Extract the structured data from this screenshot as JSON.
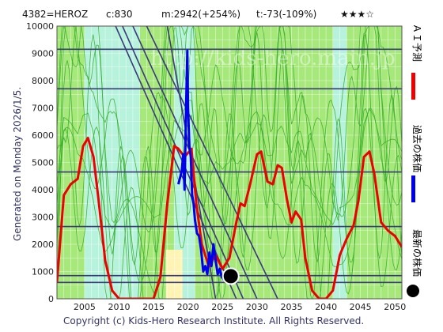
{
  "header": {
    "code": "4382=HEROZ",
    "current": "c:830",
    "mean": "m:2942(+254%)",
    "trend": "t:-73(-109%)",
    "stars": "★★★☆"
  },
  "side_text": "Generated on Monday 2026/1/5.",
  "copyright": "Copyright (c) Kids-Hero Research Institute. All Rights Reserved.",
  "watermark": "http://kids-hero.main.jp",
  "legend": [
    {
      "label": "ＡＩ予測",
      "color": "#ee0000"
    },
    {
      "label": "過去の株価",
      "color": "#0000ee"
    },
    {
      "label": "最新の株価",
      "color": "#000000"
    }
  ],
  "colors": {
    "plot_bg": "#ffffff",
    "zone_green": "#a6e87a",
    "zone_cyan": "#b6f2dc",
    "zone_yellow": "#fff4b3",
    "grid": "#ffffff",
    "hline": "#3a3a7a",
    "trend": "#3a3a7a",
    "forecast": "#ee0000",
    "price": "#0000ee",
    "thin_green": "#33aa22",
    "latest": "#000000"
  },
  "chart_data": {
    "type": "line",
    "xlim": [
      2001,
      2051
    ],
    "ylim": [
      0,
      10000
    ],
    "x_ticks": [
      2005,
      2010,
      2015,
      2020,
      2025,
      2030,
      2035,
      2040,
      2045,
      2050
    ],
    "y_ticks": [
      0,
      1000,
      2000,
      3000,
      4000,
      5000,
      6000,
      7000,
      8000,
      9000,
      10000
    ],
    "grid": true,
    "zones": [
      {
        "kind": "green",
        "x": [
          2001,
          2051
        ]
      },
      {
        "kind": "cyan",
        "x": [
          2005,
          2013
        ]
      },
      {
        "kind": "cyan",
        "x": [
          2018,
          2021
        ]
      },
      {
        "kind": "yellow",
        "x": [
          2016.8,
          2019.2
        ],
        "y": [
          0,
          1800
        ]
      },
      {
        "kind": "cyan",
        "x": [
          2041,
          2043
        ]
      }
    ],
    "horizontal_levels": [
      9150,
      7700,
      4650,
      2650,
      850,
      600
    ],
    "trend_lines": [
      {
        "x": [
          2009.5,
          2027
        ],
        "y": [
          10000,
          0
        ]
      },
      {
        "x": [
          2010.5,
          2028
        ],
        "y": [
          10000,
          0
        ]
      },
      {
        "x": [
          2012,
          2030
        ],
        "y": [
          10000,
          0
        ]
      },
      {
        "x": [
          2014,
          2033
        ],
        "y": [
          10000,
          0
        ]
      },
      {
        "x": [
          2017,
          2024
        ],
        "y": [
          10000,
          0
        ]
      }
    ],
    "series": [
      {
        "name": "ＡＩ予測",
        "x": [
          2001,
          2002,
          2003,
          2004,
          2004.8,
          2005.5,
          2006.3,
          2007,
          2008,
          2009,
          2010,
          2011,
          2012,
          2013,
          2014,
          2015,
          2016,
          2017,
          2018,
          2018.6,
          2019.5,
          2020.5,
          2021.2,
          2022,
          2023,
          2024,
          2025,
          2026,
          2027,
          2027.6,
          2028.2,
          2029,
          2030,
          2030.6,
          2031.5,
          2032.3,
          2033,
          2033.6,
          2034.3,
          2035,
          2035.6,
          2036.4,
          2037,
          2038,
          2039,
          2040,
          2041,
          2042,
          2043,
          2044,
          2044.7,
          2045.5,
          2046.3,
          2047,
          2048,
          2049,
          2050,
          2051
        ],
        "y": [
          600,
          3800,
          4200,
          4400,
          5600,
          5900,
          5200,
          3700,
          1400,
          300,
          0,
          0,
          0,
          0,
          0,
          0,
          800,
          3500,
          5600,
          5500,
          5200,
          5500,
          3500,
          2000,
          1200,
          1600,
          1100,
          1500,
          2800,
          3500,
          3400,
          4200,
          5300,
          5400,
          4300,
          4200,
          4900,
          4800,
          3700,
          2800,
          3200,
          2900,
          1500,
          300,
          0,
          0,
          300,
          1600,
          2200,
          2700,
          3600,
          5200,
          5400,
          4600,
          2800,
          2500,
          2300,
          1900
        ]
      },
      {
        "name": "過去の株価",
        "x": [
          2018.6,
          2018.9,
          2019.1,
          2019.3,
          2019.5,
          2019.7,
          2019.9,
          2020.0,
          2020.2,
          2020.4,
          2020.6,
          2020.8,
          2021.0,
          2021.3,
          2021.6,
          2021.9,
          2022.2,
          2022.5,
          2022.8,
          2023.1,
          2023.4,
          2023.7,
          2024.0,
          2024.3,
          2024.6,
          2024.9,
          2025.2,
          2025.5,
          2025.8,
          2026.0
        ],
        "y": [
          4200,
          4500,
          4700,
          5300,
          4000,
          6800,
          9100,
          7000,
          5600,
          5200,
          3800,
          3500,
          2900,
          2400,
          2300,
          1800,
          1000,
          1200,
          900,
          1700,
          1200,
          2000,
          1400,
          900,
          1100,
          800,
          700,
          900,
          850,
          830
        ]
      }
    ],
    "latest": {
      "x": 2026.2,
      "y": 830
    }
  }
}
